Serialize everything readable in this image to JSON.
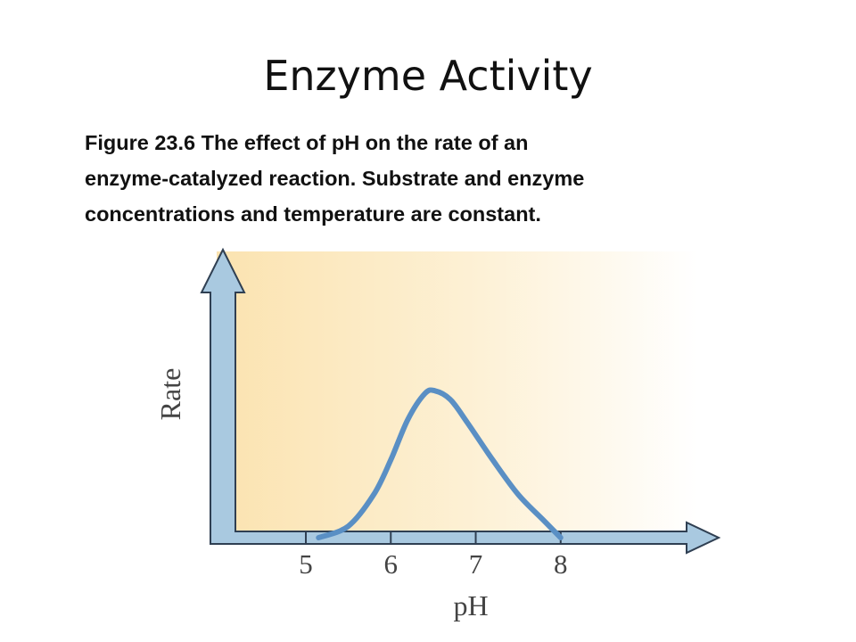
{
  "chart_data": {
    "type": "line",
    "title": "Enzyme Activity",
    "subtitle": [
      "Figure 23.6 The effect of pH on the rate of an",
      "enzyme-catalyzed reaction. Substrate and enzyme",
      "concentrations and temperature are constant."
    ],
    "xlabel": "pH",
    "ylabel": "Rate",
    "x": [
      5.15,
      5.5,
      5.8,
      6.0,
      6.2,
      6.4,
      6.52,
      6.7,
      6.9,
      7.2,
      7.5,
      7.8,
      8.0
    ],
    "y": [
      0,
      0.04,
      0.15,
      0.27,
      0.41,
      0.5,
      0.51,
      0.48,
      0.4,
      0.27,
      0.15,
      0.06,
      0
    ],
    "color": "#5a8fc4",
    "xlim": [
      3.95,
      9.85
    ],
    "ylim": [
      0,
      1
    ],
    "xticks": [
      5,
      6,
      7,
      8
    ]
  }
}
